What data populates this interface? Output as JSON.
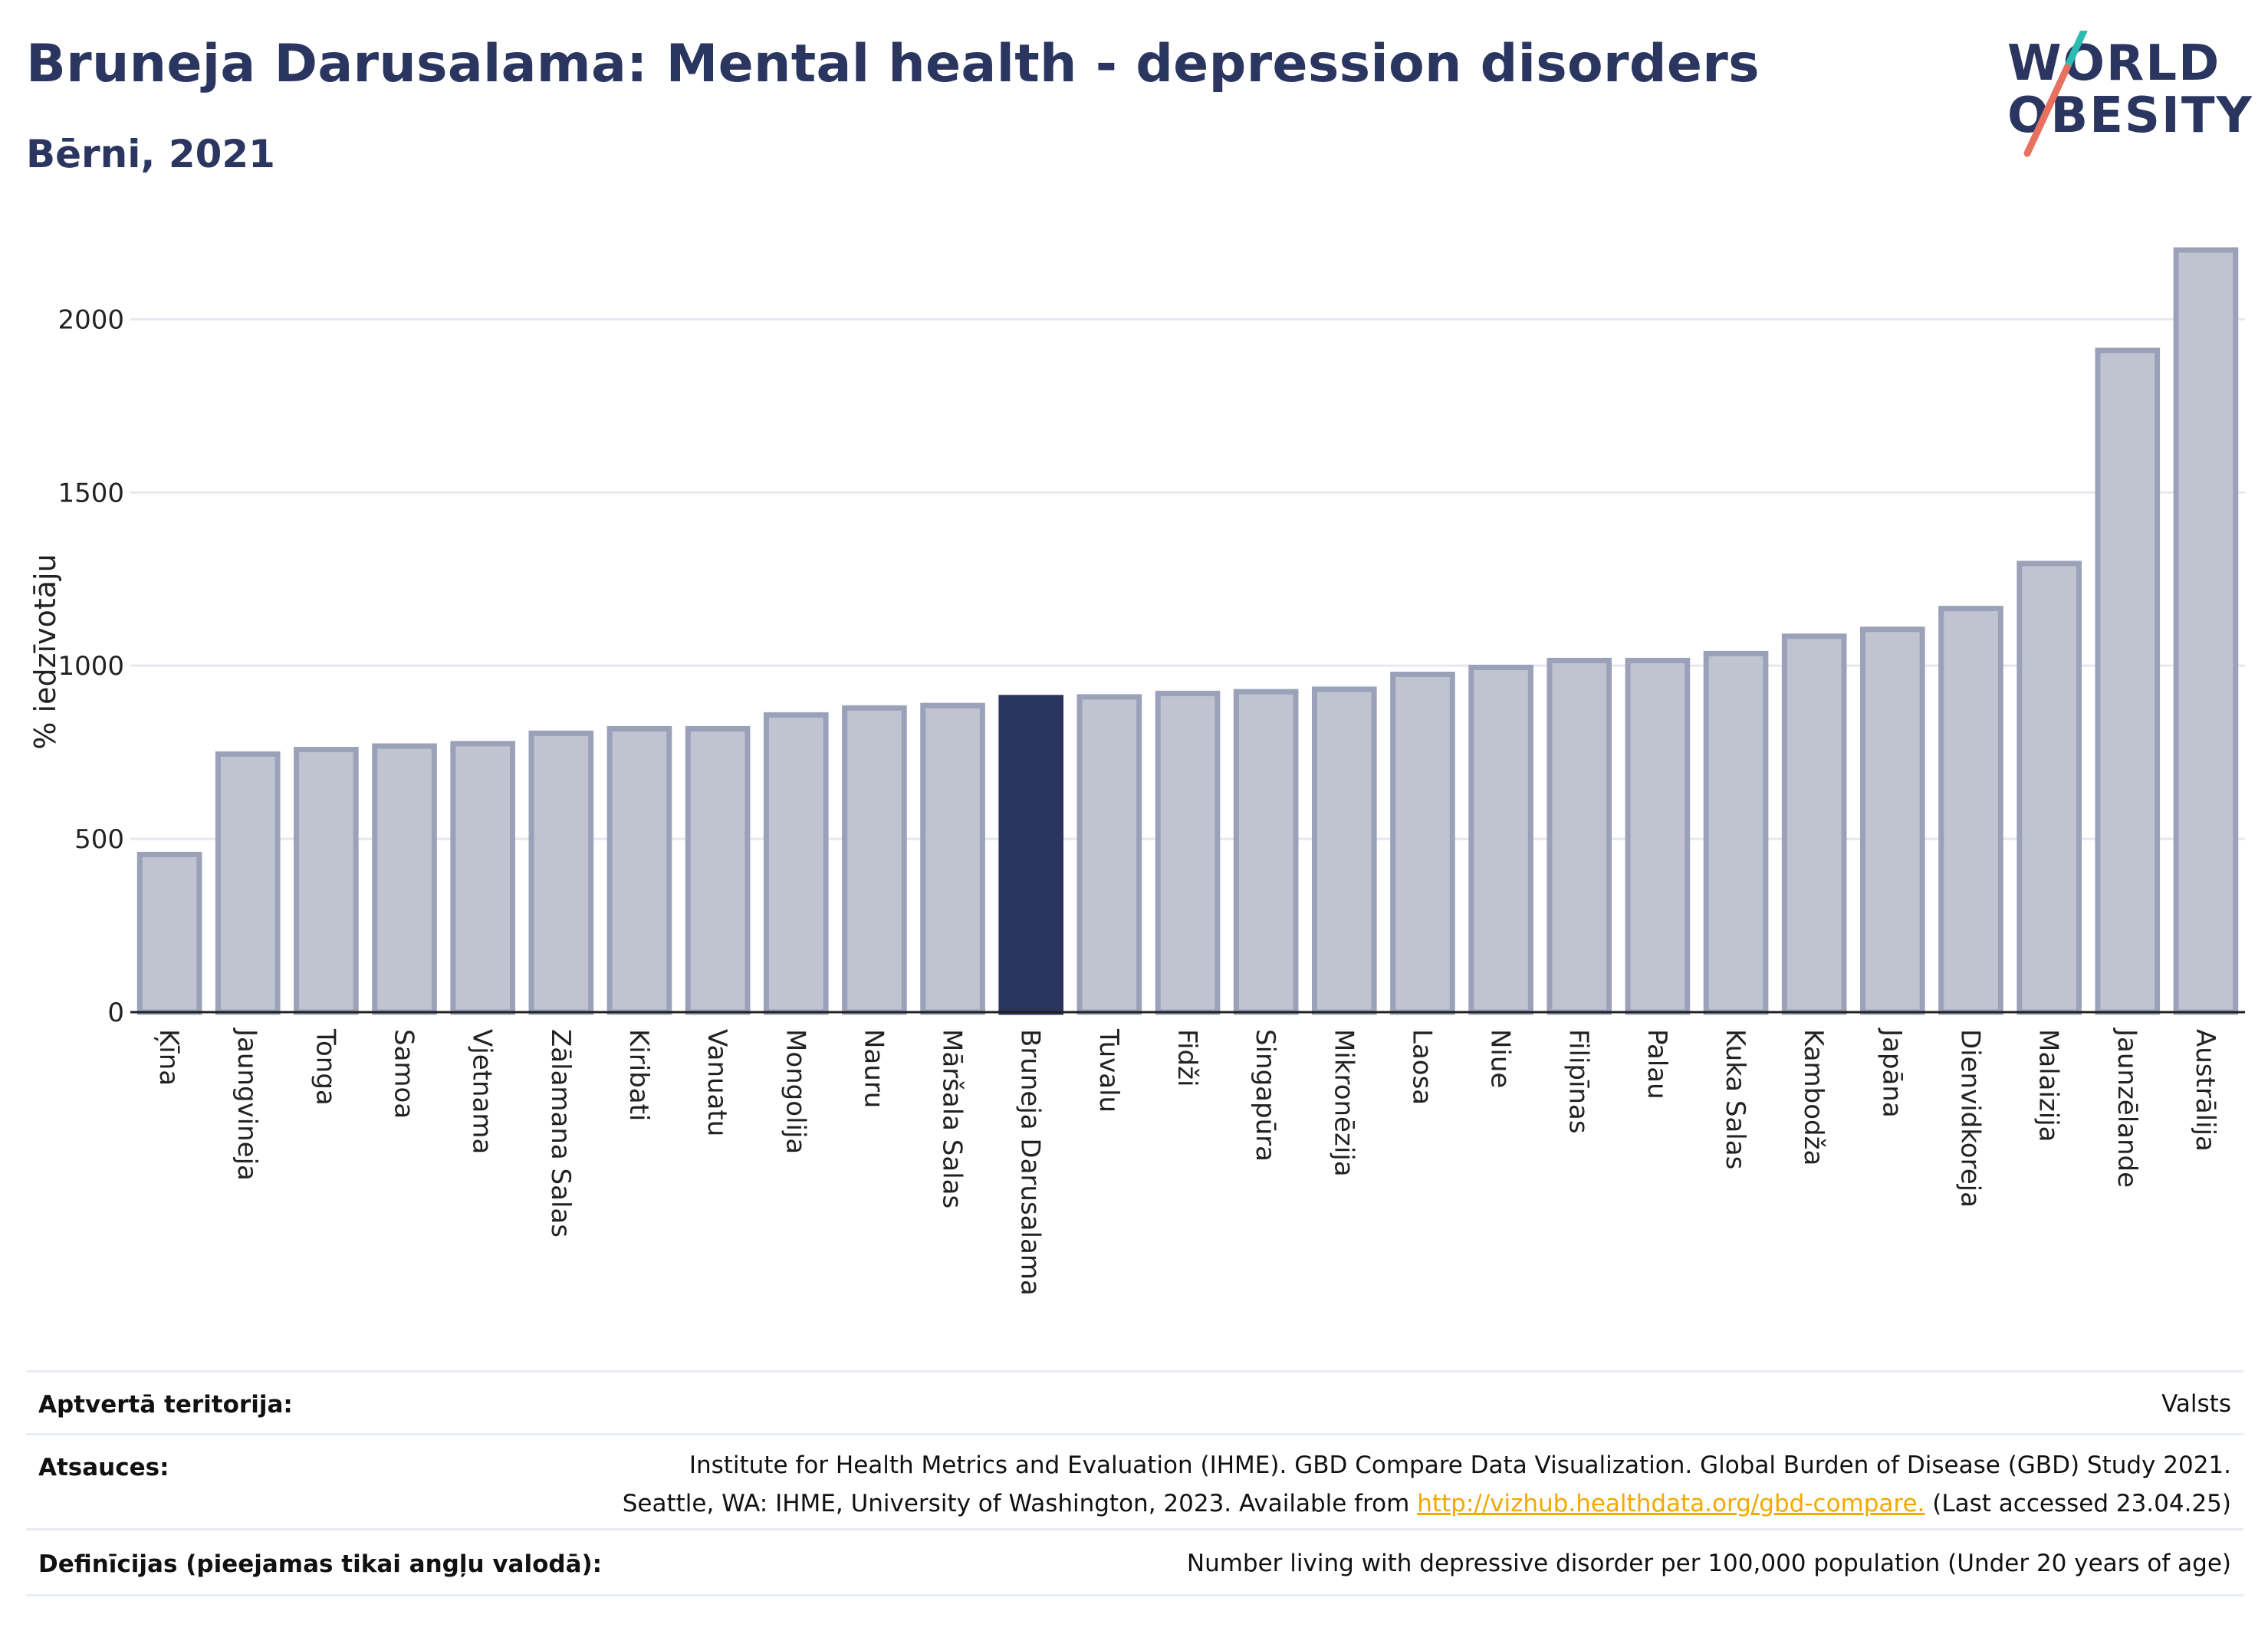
{
  "header": {
    "title": "Bruneja Darusalama: Mental health - depression disorders",
    "subtitle": "Bērni, 2021"
  },
  "logo": {
    "line1": "WORLD",
    "line2": "OBESITY",
    "accent_teal": "#2bbbb0",
    "accent_coral": "#e8705f"
  },
  "colors": {
    "bar_fill": "#c0c4d0",
    "bar_stroke": "#9aa1b8",
    "highlight": "#2a365f",
    "grid": "#e6e8ef",
    "axis": "#222222"
  },
  "chart_data": {
    "type": "bar",
    "ylabel": "% iedzīvotāju",
    "ylim": [
      0,
      2200
    ],
    "yticks": [
      0,
      500,
      1000,
      1500,
      2000
    ],
    "grid": true,
    "highlight": "Bruneja Darusalama",
    "categories": [
      "Ķīna",
      "Jaungvineja",
      "Tonga",
      "Samoa",
      "Vjetnama",
      "Zālamana Salas",
      "Kiribati",
      "Vanuatu",
      "Mongolija",
      "Nauru",
      "Māršala Salas",
      "Bruneja Darusalama",
      "Tuvalu",
      "Fidži",
      "Singapūra",
      "Mikronēzija",
      "Laosa",
      "Niue",
      "Filipīnas",
      "Palau",
      "Kuka Salas",
      "Kambodža",
      "Japāna",
      "Dienvidkoreja",
      "Malaizija",
      "Jaunzēlande",
      "Austrālija"
    ],
    "values": [
      455,
      745,
      758,
      768,
      775,
      805,
      818,
      818,
      858,
      878,
      885,
      908,
      910,
      920,
      925,
      932,
      975,
      995,
      1015,
      1015,
      1035,
      1085,
      1105,
      1165,
      1295,
      1910,
      2200
    ]
  },
  "footer": {
    "coverage_label": "Aptvertā teritorija:",
    "coverage_value": "Valsts",
    "sources_label": "Atsauces:",
    "sources_line1": "Institute for Health Metrics and Evaluation (IHME). GBD Compare Data Visualization. Global Burden of Disease (GBD) Study 2021.",
    "sources_line2_pre": "Seattle, WA: IHME, University of Washington, 2023. Available from ",
    "sources_link": "http://vizhub.healthdata.org/gbd-compare.",
    "sources_line2_post": " (Last accessed 23.04.25)",
    "definitions_label": "Definīcijas (pieejamas tikai angļu valodā):",
    "definitions_value": "Number living with depressive disorder per 100,000 population (Under 20 years of age)"
  }
}
